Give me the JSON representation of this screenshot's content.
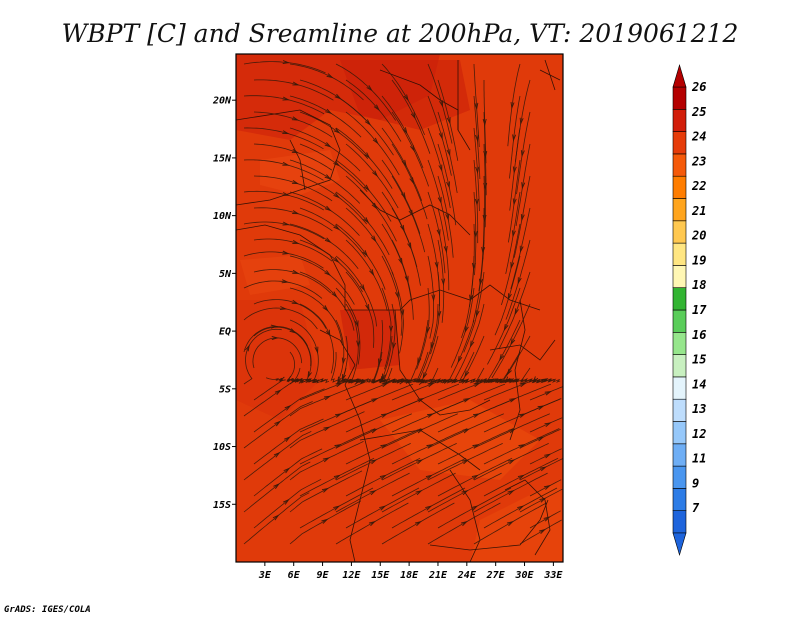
{
  "title": "WBPT [C] and Sreamline at 200hPa, VT: 2019061212",
  "credit": "GrADS: IGES/COLA",
  "map": {
    "lon_range": [
      0,
      34
    ],
    "lat_range": [
      -20,
      24
    ],
    "lat_ticks": [
      {
        "value": 20,
        "label": "20N"
      },
      {
        "value": 15,
        "label": "15N"
      },
      {
        "value": 10,
        "label": "10N"
      },
      {
        "value": 5,
        "label": "5N"
      },
      {
        "value": 0,
        "label": "EQ"
      },
      {
        "value": -5,
        "label": "5S"
      },
      {
        "value": -10,
        "label": "10S"
      },
      {
        "value": -15,
        "label": "15S"
      }
    ],
    "lon_ticks": [
      {
        "value": 3,
        "label": "3E"
      },
      {
        "value": 6,
        "label": "6E"
      },
      {
        "value": 9,
        "label": "9E"
      },
      {
        "value": 12,
        "label": "12E"
      },
      {
        "value": 15,
        "label": "15E"
      },
      {
        "value": 18,
        "label": "18E"
      },
      {
        "value": 21,
        "label": "21E"
      },
      {
        "value": 24,
        "label": "24E"
      },
      {
        "value": 27,
        "label": "27E"
      },
      {
        "value": 30,
        "label": "30E"
      },
      {
        "value": 33,
        "label": "33E"
      }
    ],
    "base_fill_color": "#e03a0a",
    "streamline_color": "#3a1a0a",
    "coast_color": "#1a0a05"
  },
  "colorbar": {
    "colors": [
      "#1e64dc",
      "#2d7ce6",
      "#4a96ef",
      "#6eaef5",
      "#96c8fa",
      "#beddfc",
      "#e4f4fc",
      "#c8f0c0",
      "#96e68c",
      "#5acd5a",
      "#32b432",
      "#fff7b4",
      "#ffe682",
      "#ffc850",
      "#ffa51e",
      "#ff7d00",
      "#f55a0a",
      "#e63c0a",
      "#d21e0a",
      "#b40000"
    ],
    "labels": [
      "7",
      "9",
      "11",
      "12",
      "13",
      "14",
      "15",
      "16",
      "17",
      "18",
      "19",
      "20",
      "21",
      "22",
      "23",
      "24",
      "25",
      "26"
    ]
  }
}
